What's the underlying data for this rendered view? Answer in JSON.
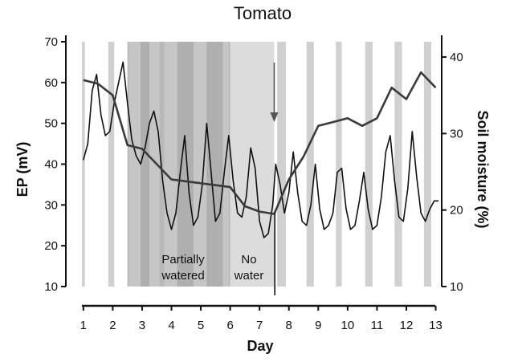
{
  "chart_data": {
    "type": "line",
    "title": "Tomato",
    "xlabel": "Day",
    "ylabel": "EP (mV)",
    "y2label": "Soil moisture (%)",
    "xlim": [
      0.95,
      13.15
    ],
    "ylim": [
      10,
      70
    ],
    "y2lim": [
      10,
      42
    ],
    "x_ticks": [
      1,
      2,
      3,
      4,
      5,
      6,
      7,
      8,
      9,
      10,
      11,
      12,
      13
    ],
    "y_ticks": [
      10,
      20,
      30,
      40,
      50,
      60,
      70
    ],
    "y2_ticks": [
      10,
      20,
      30,
      40
    ],
    "grid": false,
    "night_bands": [
      [
        0.95,
        1.05
      ],
      [
        1.85,
        2.05
      ],
      [
        2.55,
        2.95
      ],
      [
        3.25,
        3.6
      ],
      [
        3.75,
        4.2
      ],
      [
        4.75,
        5.2
      ],
      [
        5.75,
        5.95
      ],
      [
        7.6,
        7.9
      ],
      [
        8.6,
        8.85
      ],
      [
        9.6,
        9.8
      ],
      [
        10.6,
        10.85
      ],
      [
        11.6,
        11.85
      ],
      [
        12.6,
        12.85
      ]
    ],
    "treatment_zones": [
      {
        "label_line1": "Partially",
        "label_line2": "watered",
        "x": [
          2.5,
          6.0
        ]
      },
      {
        "label_line1": "No",
        "label_line2": "water",
        "x": [
          6.0,
          7.5
        ]
      }
    ],
    "arrow_day": 7.5,
    "series": [
      {
        "axis": "left",
        "x": [
          1.0,
          1.15,
          1.3,
          1.45,
          1.6,
          1.75,
          1.9,
          2.05,
          2.2,
          2.35,
          2.5,
          2.65,
          2.8,
          2.95,
          3.1,
          3.25,
          3.4,
          3.55,
          3.7,
          3.85,
          4.0,
          4.15,
          4.3,
          4.45,
          4.6,
          4.75,
          4.9,
          5.05,
          5.2,
          5.35,
          5.5,
          5.65,
          5.8,
          5.95,
          6.1,
          6.25,
          6.4,
          6.55,
          6.7,
          6.85,
          7.0,
          7.15,
          7.3,
          7.45,
          7.55,
          7.7,
          7.85,
          8.0,
          8.15,
          8.3,
          8.45,
          8.6,
          8.75,
          8.9,
          9.05,
          9.2,
          9.35,
          9.5,
          9.65,
          9.8,
          9.95,
          10.1,
          10.25,
          10.4,
          10.55,
          10.7,
          10.85,
          11.0,
          11.15,
          11.3,
          11.45,
          11.6,
          11.75,
          11.9,
          12.05,
          12.2,
          12.35,
          12.5,
          12.65,
          12.8,
          12.95,
          13.1
        ],
        "values": [
          41,
          45,
          58,
          62,
          52,
          47,
          48,
          55,
          60,
          65,
          55,
          46,
          42,
          40,
          44,
          50,
          53,
          48,
          36,
          28,
          24,
          28,
          38,
          47,
          33,
          25,
          27,
          35,
          50,
          38,
          26,
          28,
          38,
          47,
          36,
          28,
          27,
          32,
          44,
          39,
          26,
          22,
          23,
          30,
          40,
          35,
          28,
          33,
          43,
          33,
          26,
          25,
          30,
          40,
          29,
          24,
          25,
          28,
          38,
          39,
          29,
          24,
          25,
          31,
          38,
          29,
          24,
          25,
          32,
          43,
          47,
          36,
          27,
          26,
          34,
          48,
          37,
          28,
          26,
          29,
          31,
          31
        ]
      },
      {
        "axis": "right",
        "x": [
          1.0,
          1.5,
          2.0,
          2.5,
          3.0,
          3.5,
          4.0,
          5.0,
          6.0,
          6.5,
          7.0,
          7.5,
          8.0,
          8.5,
          9.0,
          9.5,
          10.0,
          10.5,
          11.0,
          11.5,
          12.0,
          12.5,
          13.0
        ],
        "values": [
          37,
          36.5,
          35,
          28.5,
          28,
          26,
          24,
          23.5,
          23,
          20.5,
          19.8,
          19.5,
          24,
          27,
          31,
          31.5,
          32,
          31,
          32,
          36,
          34.5,
          38,
          36
        ]
      }
    ]
  }
}
